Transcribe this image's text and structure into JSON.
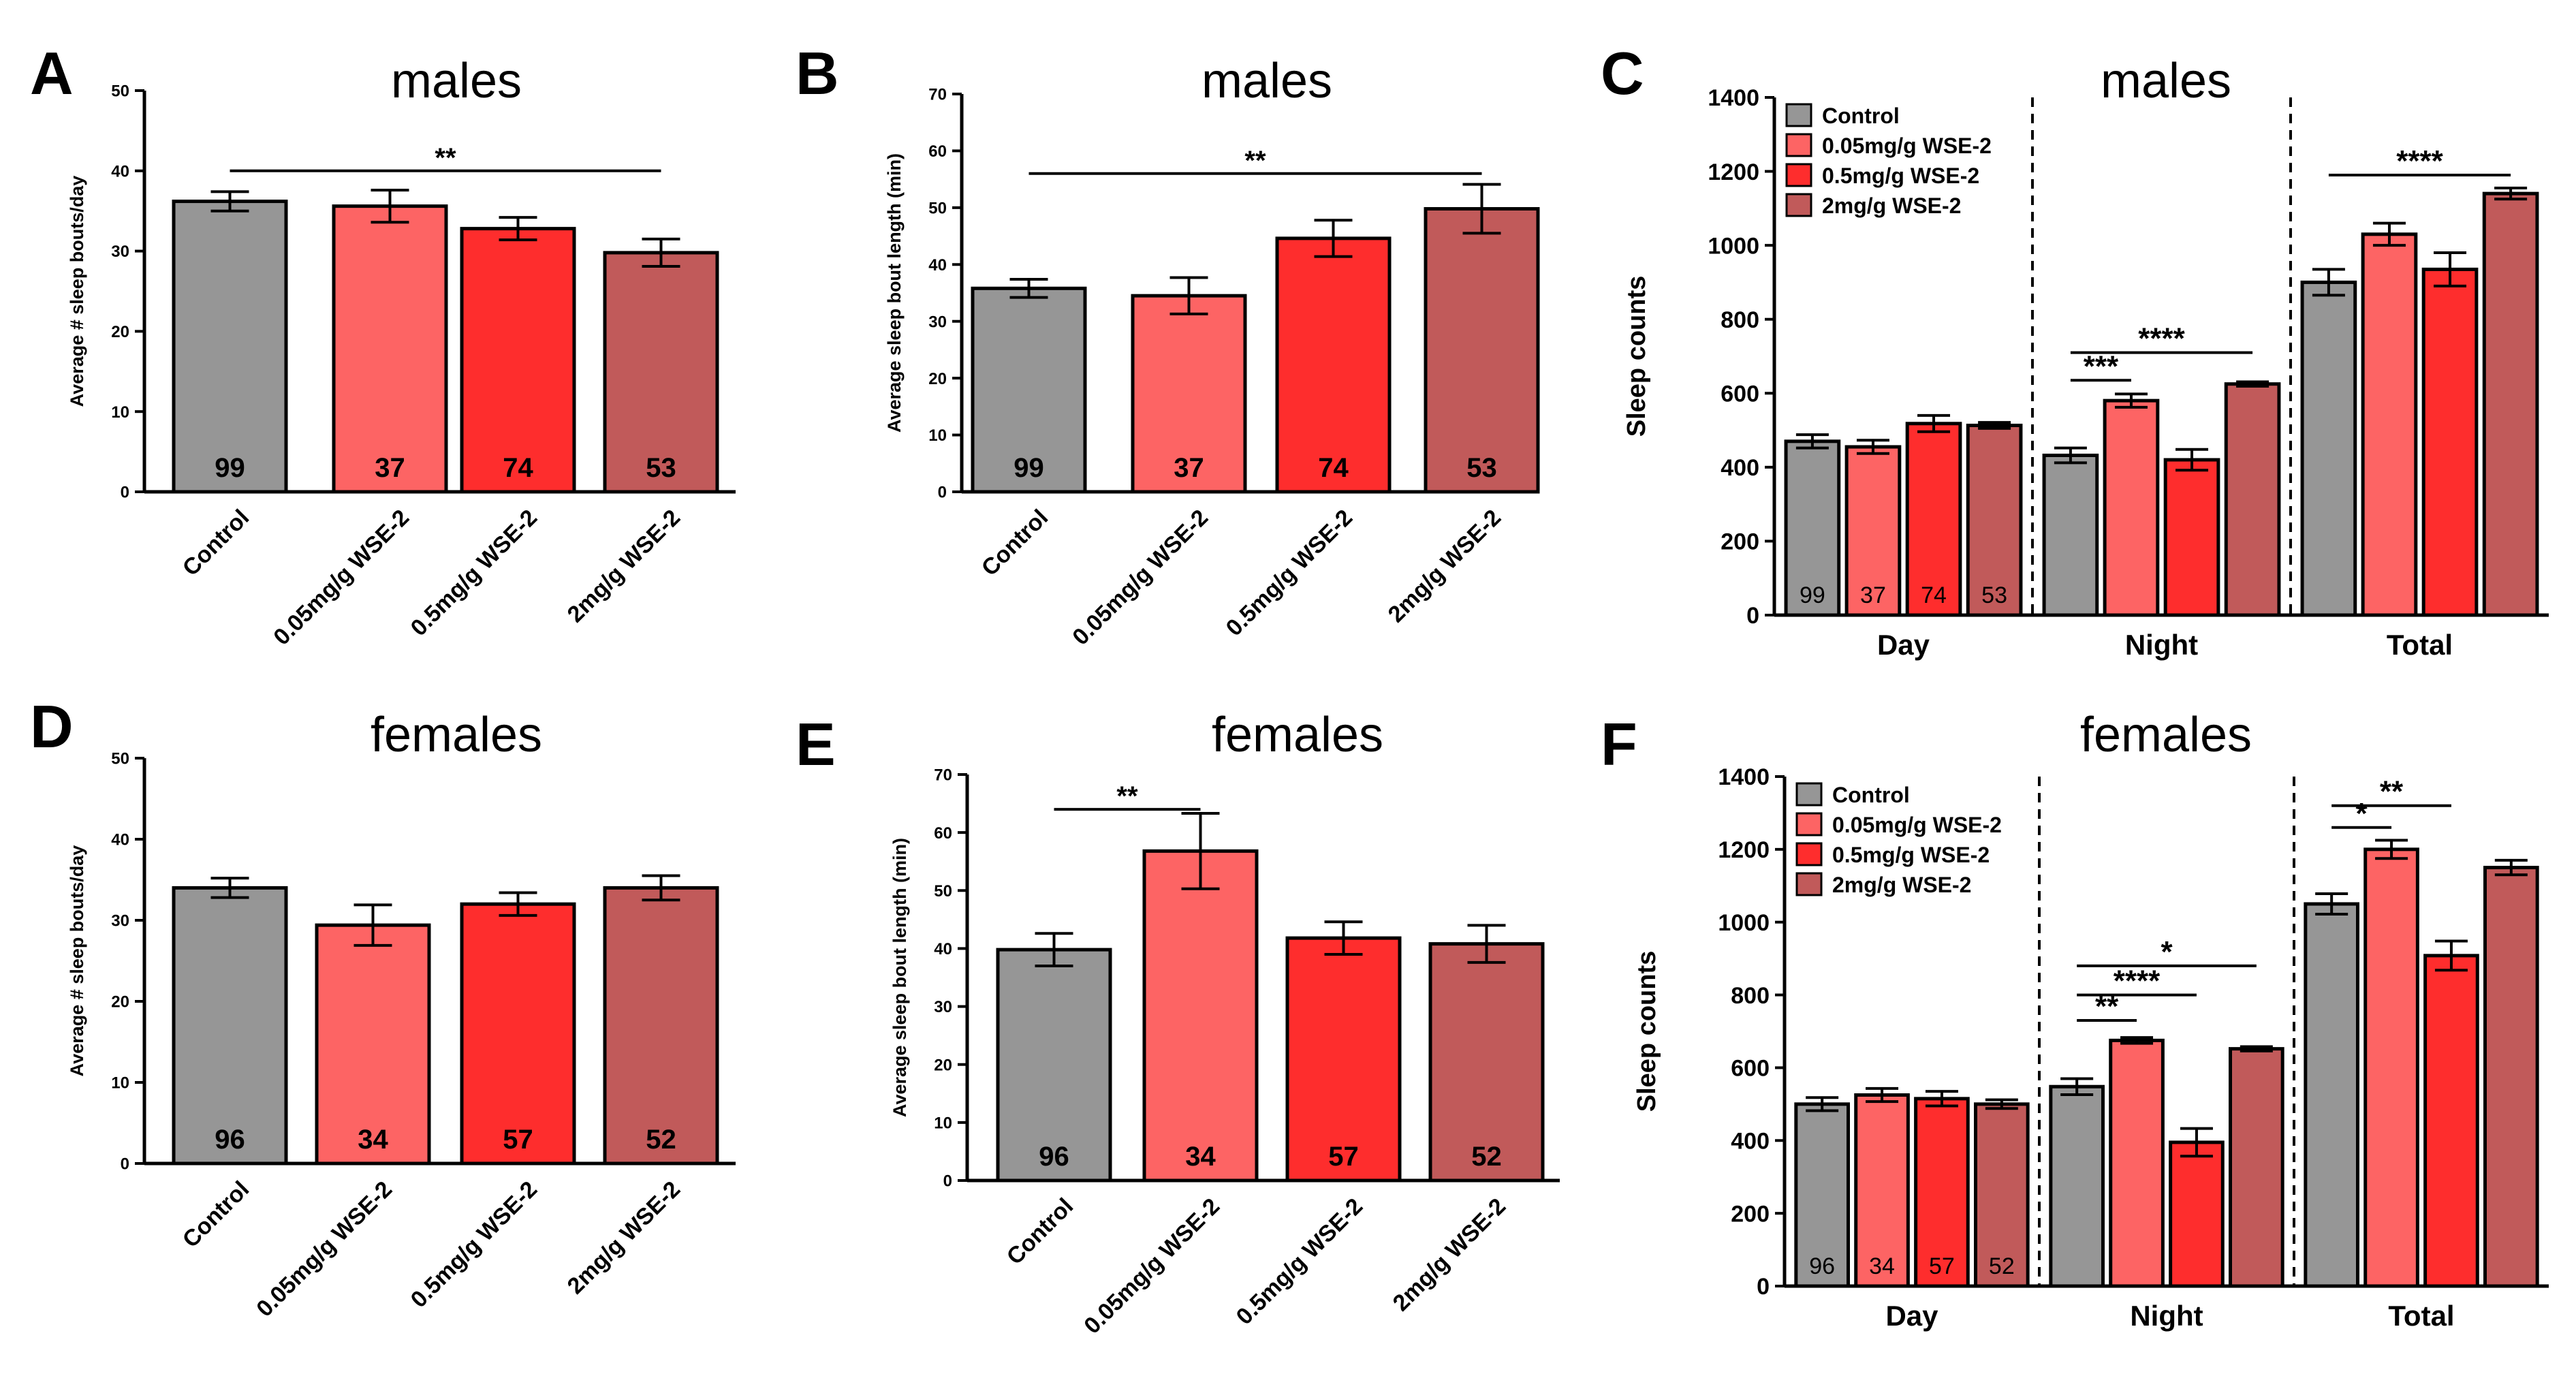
{
  "colors": {
    "control": "#969696",
    "low": "#fd6464",
    "mid": "#fe2d2d",
    "high": "#c15a5a",
    "axis": "#000000"
  },
  "chart_data": [
    {
      "id": "A",
      "type": "bar",
      "panel_letter": "A",
      "title": "males",
      "ylabel": "Average # sleep bouts/day",
      "xlabel": "",
      "ylim": [
        0,
        50
      ],
      "yticks": [
        0,
        10,
        20,
        30,
        40,
        50
      ],
      "categories": [
        "Control",
        "0.05mg/g WSE-2",
        "0.5mg/g WSE-2",
        "2mg/g WSE-2"
      ],
      "values": [
        36.2,
        35.6,
        32.8,
        29.8
      ],
      "errors": [
        1.2,
        2.0,
        1.4,
        1.7
      ],
      "n_labels": [
        "99",
        "37",
        "74",
        "53"
      ],
      "significance": [
        {
          "from": 0,
          "to": 3,
          "label": "**",
          "y": 40
        }
      ]
    },
    {
      "id": "B",
      "type": "bar",
      "panel_letter": "B",
      "title": "males",
      "ylabel": "Average sleep bout length (min)",
      "xlabel": "",
      "ylim": [
        0,
        70
      ],
      "yticks": [
        0,
        10,
        20,
        30,
        40,
        50,
        60,
        70
      ],
      "categories": [
        "Control",
        "0.05mg/g WSE-2",
        "0.5mg/g WSE-2",
        "2mg/g WSE-2"
      ],
      "values": [
        35.8,
        34.5,
        44.6,
        49.8
      ],
      "errors": [
        1.6,
        3.2,
        3.2,
        4.3
      ],
      "n_labels": [
        "99",
        "37",
        "74",
        "53"
      ],
      "significance": [
        {
          "from": 0,
          "to": 3,
          "label": "**",
          "y": 56
        }
      ]
    },
    {
      "id": "C",
      "type": "bar",
      "panel_letter": "C",
      "title": "males",
      "ylabel": "Sleep counts",
      "xlabel": "",
      "ylim": [
        0,
        1400
      ],
      "yticks": [
        0,
        200,
        400,
        600,
        800,
        1000,
        1200,
        1400
      ],
      "groups": [
        "Day",
        "Night",
        "Total"
      ],
      "series": [
        {
          "name": "Control",
          "values": [
            470,
            432,
            900
          ],
          "errors": [
            18,
            20,
            35
          ]
        },
        {
          "name": "0.05mg/g WSE-2",
          "values": [
            455,
            580,
            1030
          ],
          "errors": [
            18,
            18,
            30
          ]
        },
        {
          "name": "0.5mg/g WSE-2",
          "values": [
            518,
            420,
            935
          ],
          "errors": [
            22,
            28,
            45
          ]
        },
        {
          "name": "2mg/g WSE-2",
          "values": [
            513,
            625,
            1140
          ],
          "errors": [
            8,
            6,
            15
          ]
        }
      ],
      "n_labels": [
        "99",
        "37",
        "74",
        "53"
      ],
      "legend": "top-left",
      "significance": [
        {
          "group": 1,
          "from": 0,
          "to": 1,
          "label": "***",
          "y": 635
        },
        {
          "group": 1,
          "from": 0,
          "to": 3,
          "label": "****",
          "y": 710
        },
        {
          "group": 2,
          "from": 0,
          "to": 3,
          "label": "****",
          "y": 1190
        }
      ]
    },
    {
      "id": "D",
      "type": "bar",
      "panel_letter": "D",
      "title": "females",
      "ylabel": "Average # sleep bouts/day",
      "xlabel": "",
      "ylim": [
        0,
        50
      ],
      "yticks": [
        0,
        10,
        20,
        30,
        40,
        50
      ],
      "categories": [
        "Control",
        "0.05mg/g WSE-2",
        "0.5mg/g WSE-2",
        "2mg/g WSE-2"
      ],
      "values": [
        34.0,
        29.4,
        32.0,
        34.0
      ],
      "errors": [
        1.2,
        2.5,
        1.4,
        1.5
      ],
      "n_labels": [
        "96",
        "34",
        "57",
        "52"
      ],
      "significance": []
    },
    {
      "id": "E",
      "type": "bar",
      "panel_letter": "E",
      "title": "females",
      "ylabel": "Average sleep bout length (min)",
      "xlabel": "",
      "ylim": [
        0,
        70
      ],
      "yticks": [
        0,
        10,
        20,
        30,
        40,
        50,
        60,
        70
      ],
      "categories": [
        "Control",
        "0.05mg/g WSE-2",
        "0.5mg/g WSE-2",
        "2mg/g WSE-2"
      ],
      "values": [
        39.8,
        56.8,
        41.8,
        40.8
      ],
      "errors": [
        2.8,
        6.5,
        2.8,
        3.2
      ],
      "n_labels": [
        "96",
        "34",
        "57",
        "52"
      ],
      "significance": [
        {
          "from": 0,
          "to": 1,
          "label": "**",
          "y": 64
        }
      ]
    },
    {
      "id": "F",
      "type": "bar",
      "panel_letter": "F",
      "title": "females",
      "ylabel": "Sleep counts",
      "xlabel": "",
      "ylim": [
        0,
        1400
      ],
      "yticks": [
        0,
        200,
        400,
        600,
        800,
        1000,
        1200,
        1400
      ],
      "groups": [
        "Day",
        "Night",
        "Total"
      ],
      "series": [
        {
          "name": "Control",
          "values": [
            500,
            548,
            1050
          ],
          "errors": [
            18,
            22,
            28
          ]
        },
        {
          "name": "0.05mg/g WSE-2",
          "values": [
            525,
            675,
            1200
          ],
          "errors": [
            18,
            8,
            25
          ]
        },
        {
          "name": "0.5mg/g WSE-2",
          "values": [
            515,
            395,
            908
          ],
          "errors": [
            20,
            38,
            40
          ]
        },
        {
          "name": "2mg/g WSE-2",
          "values": [
            500,
            652,
            1150
          ],
          "errors": [
            12,
            6,
            20
          ]
        }
      ],
      "n_labels": [
        "96",
        "34",
        "57",
        "52"
      ],
      "legend": "top-left",
      "significance": [
        {
          "group": 1,
          "from": 0,
          "to": 1,
          "label": "**",
          "y": 730
        },
        {
          "group": 1,
          "from": 0,
          "to": 2,
          "label": "****",
          "y": 800
        },
        {
          "group": 1,
          "from": 0,
          "to": 3,
          "label": "*",
          "y": 880
        },
        {
          "group": 2,
          "from": 0,
          "to": 1,
          "label": "*",
          "y": 1260
        },
        {
          "group": 2,
          "from": 0,
          "to": 2,
          "label": "**",
          "y": 1320
        }
      ]
    }
  ]
}
